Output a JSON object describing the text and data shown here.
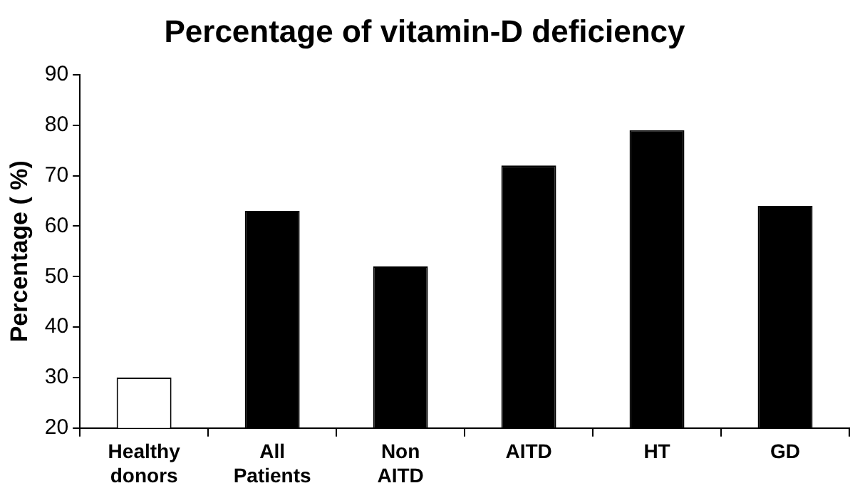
{
  "chart_data": {
    "type": "bar",
    "title": "Percentage of vitamin-D deficiency",
    "ylabel": "Percentage ( %)",
    "categories": [
      "Healthy donors",
      "All Patients",
      "Non AITD",
      "AITD",
      "HT",
      "GD"
    ],
    "values": [
      30,
      63,
      52,
      72,
      79,
      64
    ],
    "colors": [
      "#ffffff",
      "#000000",
      "#000000",
      "#000000",
      "#000000",
      "#000000"
    ],
    "ylim": [
      20,
      90
    ],
    "yticks": [
      20,
      30,
      40,
      50,
      60,
      70,
      80,
      90
    ],
    "grid": false,
    "legend": false
  }
}
